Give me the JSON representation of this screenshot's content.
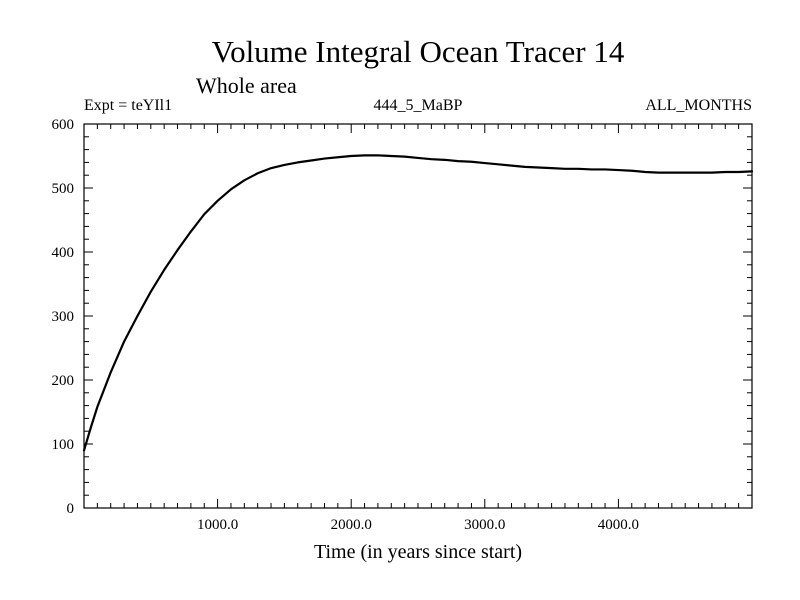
{
  "chart_data": {
    "type": "line",
    "title": "Volume Integral Ocean Tracer 14",
    "subtitle": "Whole area",
    "left_label": "Expt = teYIl1",
    "center_label": "444_5_MaBP",
    "right_label": "ALL_MONTHS",
    "xlabel": "Time (in years since start)",
    "ylabel": "",
    "xlim": [
      0,
      5000
    ],
    "ylim": [
      0,
      600
    ],
    "x_ticks": [
      1000,
      2000,
      3000,
      4000
    ],
    "x_tick_labels": [
      "1000.0",
      "2000.0",
      "3000.0",
      "4000.0"
    ],
    "y_ticks": [
      0,
      100,
      200,
      300,
      400,
      500,
      600
    ],
    "y_tick_labels": [
      "0",
      "100",
      "200",
      "300",
      "400",
      "500",
      "600"
    ],
    "grid": false,
    "line_color": "#000000",
    "series": [
      {
        "x": [
          0,
          50,
          100,
          200,
          300,
          400,
          500,
          600,
          700,
          800,
          900,
          1000,
          1100,
          1200,
          1300,
          1400,
          1500,
          1600,
          1700,
          1800,
          1900,
          2000,
          2100,
          2200,
          2300,
          2400,
          2500,
          2600,
          2700,
          2800,
          2900,
          3000,
          3100,
          3200,
          3300,
          3400,
          3500,
          3600,
          3700,
          3800,
          3900,
          4000,
          4100,
          4200,
          4300,
          4400,
          4500,
          4600,
          4700,
          4800,
          4900,
          5000
        ],
        "values": [
          90,
          125,
          158,
          212,
          260,
          300,
          338,
          372,
          403,
          432,
          459,
          480,
          498,
          512,
          523,
          531,
          536,
          540,
          543,
          546,
          548,
          550,
          551,
          551,
          550,
          549,
          547,
          545,
          544,
          542,
          541,
          539,
          537,
          535,
          533,
          532,
          531,
          530,
          530,
          529,
          529,
          528,
          527,
          525,
          524,
          524,
          524,
          524,
          524,
          525,
          525,
          526
        ]
      }
    ]
  }
}
